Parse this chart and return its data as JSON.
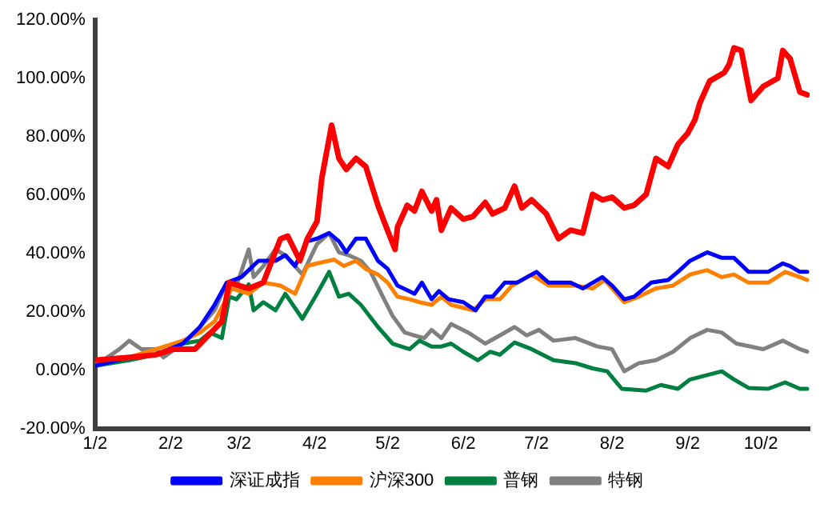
{
  "chart_data": {
    "type": "line",
    "xlim": [
      "--01-02",
      "--10-22"
    ],
    "xticks": [
      {
        "value": "--01-02",
        "label": "1/2"
      },
      {
        "value": "--02-02",
        "label": "2/2"
      },
      {
        "value": "--03-02",
        "label": "3/2"
      },
      {
        "value": "--04-02",
        "label": "4/2"
      },
      {
        "value": "--05-02",
        "label": "5/2"
      },
      {
        "value": "--06-02",
        "label": "6/2"
      },
      {
        "value": "--07-02",
        "label": "7/2"
      },
      {
        "value": "--08-02",
        "label": "8/2"
      },
      {
        "value": "--09-02",
        "label": "9/2"
      },
      {
        "value": "--10-02",
        "label": "10/2"
      }
    ],
    "ylim": [
      -20,
      120
    ],
    "yticks": [
      {
        "value": -20,
        "label": "-20.00%"
      },
      {
        "value": 0,
        "label": "0.00%"
      },
      {
        "value": 20,
        "label": "20.00%"
      },
      {
        "value": 40,
        "label": "40.00%"
      },
      {
        "value": 60,
        "label": "60.00%"
      },
      {
        "value": 80,
        "label": "80.00%"
      },
      {
        "value": 100,
        "label": "100.00%"
      },
      {
        "value": 120,
        "label": "120.00%"
      }
    ],
    "grid": false,
    "legend": "bottom",
    "marker": "none",
    "line_style": "solid",
    "series": [
      {
        "color": "#ff0000",
        "x": [
          "--01-02",
          "--01-16",
          "--01-27",
          "--02-03",
          "--02-12",
          "--02-23",
          "--02-26",
          "--03-06",
          "--03-12",
          "--03-19",
          "--03-22",
          "--03-27",
          "--03-30",
          "--04-03",
          "--04-05",
          "--04-09",
          "--04-12",
          "--04-15",
          "--04-19",
          "--04-23",
          "--04-28",
          "--05-01",
          "--05-05",
          "--05-06",
          "--05-10",
          "--05-13",
          "--05-16",
          "--05-20",
          "--05-22",
          "--05-24",
          "--05-28",
          "--06-02",
          "--06-06",
          "--06-11",
          "--06-14",
          "--06-19",
          "--06-23",
          "--06-26",
          "--06-30",
          "--07-06",
          "--07-11",
          "--07-16",
          "--07-21",
          "--07-25",
          "--07-29",
          "--08-02",
          "--08-07",
          "--08-11",
          "--08-16",
          "--08-20",
          "--08-25",
          "--08-29",
          "--09-02",
          "--09-05",
          "--09-07",
          "--09-11",
          "--09-17",
          "--09-19",
          "--09-21",
          "--09-24",
          "--09-28",
          "--10-03",
          "--10-09",
          "--10-11",
          "--10-14",
          "--10-18",
          "--10-21"
        ],
        "values": [
          3.4,
          4.4,
          5.3,
          7.2,
          7.2,
          16.7,
          30,
          28,
          30,
          45,
          46,
          37.5,
          45,
          51,
          66,
          84,
          72.6,
          68.8,
          72.6,
          69.8,
          56.5,
          49.9,
          41.4,
          49,
          56.5,
          54.6,
          61.3,
          54.6,
          58.4,
          48,
          55.6,
          51.8,
          52.7,
          57.5,
          53.6,
          55.6,
          63.1,
          55.6,
          58.4,
          53.6,
          45.1,
          48,
          47,
          60.3,
          58.4,
          59.3,
          55.6,
          56.5,
          60.3,
          72.6,
          69.8,
          77.4,
          81.2,
          85.9,
          91.6,
          99.1,
          102,
          104.8,
          110.5,
          109.6,
          92.5,
          97.3,
          100.1,
          109.6,
          106.8,
          95.4,
          94.4
        ]
      },
      {
        "name": "深证成指",
        "color": "#0000ff",
        "x": [
          "--01-02",
          "--01-16",
          "--01-27",
          "--02-07",
          "--02-14",
          "--02-20",
          "--02-25",
          "--03-03",
          "--03-10",
          "--03-17",
          "--03-21",
          "--03-25",
          "--03-30",
          "--04-03",
          "--04-08",
          "--04-12",
          "--04-15",
          "--04-19",
          "--04-23",
          "--04-28",
          "--05-02",
          "--05-06",
          "--05-13",
          "--05-16",
          "--05-20",
          "--05-23",
          "--05-27",
          "--06-02",
          "--06-07",
          "--06-11",
          "--06-14",
          "--06-19",
          "--06-24",
          "--07-02",
          "--07-07",
          "--07-16",
          "--07-21",
          "--07-29",
          "--08-02",
          "--08-07",
          "--08-11",
          "--08-18",
          "--08-25",
          "--08-29",
          "--09-03",
          "--09-10",
          "--09-16",
          "--09-21",
          "--09-27",
          "--10-05",
          "--10-11",
          "--10-14",
          "--10-18",
          "--10-21"
        ],
        "values": [
          1.5,
          4.4,
          5.3,
          9.1,
          14.8,
          22.4,
          30,
          31.9,
          37.5,
          37.5,
          39.4,
          35.7,
          44.2,
          45.1,
          47,
          44.2,
          40.4,
          45.1,
          45.1,
          37.5,
          34.7,
          29,
          26.2,
          30,
          24.3,
          27.1,
          24.3,
          23.3,
          20.5,
          25.2,
          25.2,
          30,
          30,
          33.7,
          30,
          30,
          28,
          31.9,
          29,
          24.3,
          25.2,
          30,
          30.9,
          33.7,
          37.5,
          40.4,
          38.5,
          38.5,
          33.7,
          33.7,
          36.6,
          35.7,
          33.7,
          33.7
        ]
      },
      {
        "name": "沪深300",
        "color": "#ff8000",
        "x": [
          "--01-02",
          "--01-16",
          "--01-27",
          "--02-07",
          "--02-14",
          "--02-20",
          "--02-27",
          "--03-06",
          "--03-12",
          "--03-19",
          "--03-25",
          "--03-30",
          "--04-03",
          "--04-10",
          "--04-14",
          "--04-19",
          "--04-23",
          "--04-28",
          "--05-02",
          "--05-06",
          "--05-11",
          "--05-15",
          "--05-20",
          "--05-24",
          "--05-28",
          "--06-06",
          "--06-11",
          "--06-17",
          "--06-22",
          "--06-30",
          "--07-07",
          "--07-18",
          "--07-25",
          "--07-30",
          "--08-07",
          "--08-13",
          "--08-20",
          "--08-27",
          "--09-03",
          "--09-10",
          "--09-16",
          "--09-21",
          "--09-27",
          "--10-05",
          "--10-12",
          "--10-18",
          "--10-21"
        ],
        "values": [
          2.4,
          4.4,
          7.2,
          10.1,
          12.9,
          16.7,
          28,
          26.2,
          30,
          29,
          26.2,
          35.7,
          36.6,
          37.9,
          35.7,
          37.5,
          34.7,
          32.8,
          30,
          25.2,
          24.3,
          23.3,
          22.4,
          25.2,
          22.4,
          20.5,
          24.3,
          24.3,
          29,
          32.8,
          29,
          29,
          28,
          30.9,
          23.3,
          25.2,
          28,
          29,
          32.8,
          34.3,
          31.9,
          32.8,
          30,
          30,
          33.7,
          31.9,
          30.9
        ]
      },
      {
        "name": "普钢",
        "color": "#008040",
        "x": [
          "--01-02",
          "--01-16",
          "--01-27",
          "--02-07",
          "--02-14",
          "--02-18",
          "--02-23",
          "--02-26",
          "--03-01",
          "--03-06",
          "--03-08",
          "--03-12",
          "--03-17",
          "--03-21",
          "--03-28",
          "--04-03",
          "--04-08",
          "--04-12",
          "--04-16",
          "--04-21",
          "--04-28",
          "--05-04",
          "--05-11",
          "--05-15",
          "--05-20",
          "--05-24",
          "--05-28",
          "--06-02",
          "--06-08",
          "--06-13",
          "--06-17",
          "--06-23",
          "--06-30",
          "--07-09",
          "--07-18",
          "--07-25",
          "--07-31",
          "--08-06",
          "--08-16",
          "--08-22",
          "--08-29",
          "--09-03",
          "--09-16",
          "--09-21",
          "--09-27",
          "--10-05",
          "--10-12",
          "--10-18",
          "--10-21"
        ],
        "values": [
          1.5,
          3.4,
          5.3,
          9.1,
          10.1,
          12.9,
          11,
          25.2,
          24.3,
          29.4,
          20.5,
          23.3,
          20.5,
          26.2,
          17.6,
          26.2,
          33.7,
          25.2,
          26.2,
          22.4,
          14.8,
          9.1,
          7.2,
          10.1,
          8.1,
          8.1,
          9.1,
          6.3,
          3.4,
          6.3,
          5.3,
          9.5,
          7.2,
          3.4,
          2.4,
          0.6,
          -0.4,
          -6.4,
          -7,
          -5.1,
          -6.4,
          -3.2,
          -0.4,
          -3.2,
          -6.1,
          -6.4,
          -4.2,
          -6.4,
          -6.4
        ]
      },
      {
        "name": "特钢",
        "color": "#808080",
        "x": [
          "--01-02",
          "--01-12",
          "--01-16",
          "--01-21",
          "--01-27",
          "--01-30",
          "--02-07",
          "--02-14",
          "--02-20",
          "--02-25",
          "--03-01",
          "--03-06",
          "--03-08",
          "--03-12",
          "--03-17",
          "--03-21",
          "--03-28",
          "--04-03",
          "--04-08",
          "--04-12",
          "--04-16",
          "--04-21",
          "--04-25",
          "--04-30",
          "--05-04",
          "--05-09",
          "--05-13",
          "--05-17",
          "--05-20",
          "--05-24",
          "--05-28",
          "--06-04",
          "--06-11",
          "--06-17",
          "--06-23",
          "--06-28",
          "--07-03",
          "--07-09",
          "--07-18",
          "--07-27",
          "--08-02",
          "--08-07",
          "--08-13",
          "--08-20",
          "--08-27",
          "--09-03",
          "--09-10",
          "--09-16",
          "--09-22",
          "--10-03",
          "--10-11",
          "--10-18",
          "--10-21"
        ],
        "values": [
          1.5,
          7.2,
          10.1,
          7.2,
          7.2,
          4.4,
          9.1,
          14.8,
          20.5,
          30,
          29,
          41.4,
          31.9,
          35.7,
          41.4,
          39.4,
          32.8,
          43.2,
          47,
          40.4,
          39.4,
          37.5,
          33.7,
          25.2,
          18.6,
          12.9,
          11.9,
          11,
          13.8,
          11,
          15.8,
          12.9,
          9.1,
          11.9,
          14.8,
          11.9,
          13.8,
          10.1,
          11,
          8.1,
          7.2,
          -0.4,
          2.4,
          3.4,
          6.3,
          11,
          13.8,
          12.9,
          9.1,
          7.2,
          10.1,
          7.2,
          6.3
        ]
      }
    ]
  }
}
